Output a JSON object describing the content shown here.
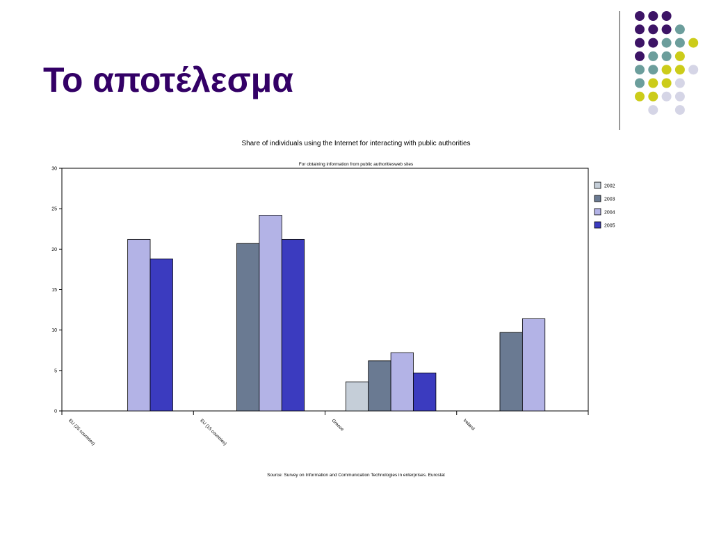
{
  "slide": {
    "title": "Το αποτέλεσμα"
  },
  "decoration": {
    "colors": {
      "purple": "#3d1466",
      "teal": "#6c9e9c",
      "yellow": "#cccc1a",
      "lavender": "#d5d5e6"
    },
    "dot_rows": [
      [
        "purple",
        "purple",
        "purple",
        null,
        null
      ],
      [
        "purple",
        "purple",
        "purple",
        "teal",
        null
      ],
      [
        "purple",
        "purple",
        "teal",
        "teal",
        "yellow"
      ],
      [
        "purple",
        "teal",
        "teal",
        "yellow",
        null
      ],
      [
        "teal",
        "teal",
        "yellow",
        "yellow",
        "lavender"
      ],
      [
        "teal",
        "yellow",
        "yellow",
        "lavender",
        null
      ],
      [
        "yellow",
        "yellow",
        "lavender",
        "lavender",
        null
      ],
      [
        null,
        "lavender",
        null,
        "lavender",
        null
      ]
    ]
  },
  "chart_data": {
    "type": "bar",
    "title": "Share of individuals using the Internet for interacting with public authorities",
    "subtitle": "For obtaining information from public authoritiesweb sites",
    "source": "Source: Survey on Information and Communication Technologies in enterprises. Eurostat",
    "categories": [
      "EU (25 countries)",
      "EU (15 countries)",
      "Greece",
      "Ireland"
    ],
    "series": [
      {
        "name": "2002",
        "color": "#c5ced8",
        "values": [
          null,
          null,
          3.6,
          null
        ]
      },
      {
        "name": "2003",
        "color": "#6a7a92",
        "values": [
          null,
          20.7,
          6.2,
          9.7
        ]
      },
      {
        "name": "2004",
        "color": "#b3b3e6",
        "values": [
          21.2,
          24.2,
          7.2,
          11.4
        ]
      },
      {
        "name": "2005",
        "color": "#3b3bbf",
        "values": [
          18.8,
          21.2,
          4.7,
          null
        ]
      }
    ],
    "ylim": [
      0,
      30
    ],
    "yticks": [
      0,
      5,
      10,
      15,
      20,
      25,
      30
    ],
    "grid": false,
    "legend_position": "right"
  }
}
